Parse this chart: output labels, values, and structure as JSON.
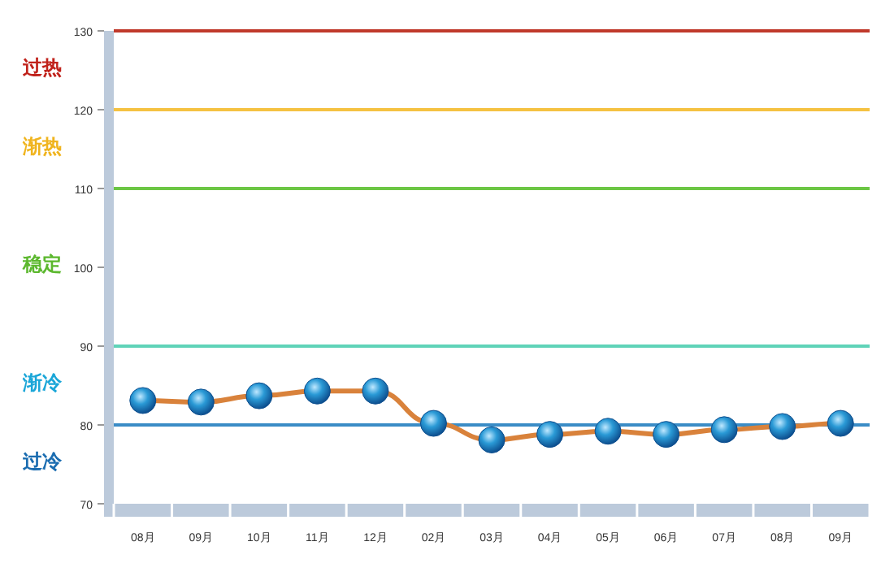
{
  "chart_data": {
    "type": "line",
    "categories": [
      "08月",
      "09月",
      "10月",
      "11月",
      "12月",
      "02月",
      "03月",
      "04月",
      "05月",
      "06月",
      "07月",
      "08月",
      "09月"
    ],
    "series": [
      {
        "color": "#d9823b",
        "values": [
          83.1,
          82.9,
          83.7,
          84.3,
          84.3,
          80.2,
          78.1,
          78.8,
          79.2,
          78.8,
          79.4,
          79.8,
          80.2
        ]
      }
    ],
    "ylim": [
      70,
      130
    ],
    "yticks": [
      70,
      80,
      90,
      100,
      110,
      120,
      130
    ],
    "marker": "circle",
    "grid": false,
    "ref_lines": [
      {
        "axis": "y",
        "value": 130,
        "color": "#c0392b"
      },
      {
        "axis": "y",
        "value": 120,
        "color": "#f5c242"
      },
      {
        "axis": "y",
        "value": 110,
        "color": "#6cc644"
      },
      {
        "axis": "y",
        "value": 90,
        "color": "#5fd3b8"
      },
      {
        "axis": "y",
        "value": 80,
        "color": "#3a8cc6"
      }
    ],
    "annotations": [
      "过热",
      "渐热",
      "稳定",
      "渐冷",
      "过冷"
    ]
  }
}
